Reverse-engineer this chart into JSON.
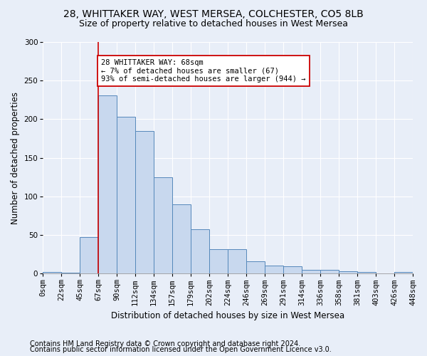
{
  "title1": "28, WHITTAKER WAY, WEST MERSEA, COLCHESTER, CO5 8LB",
  "title2": "Size of property relative to detached houses in West Mersea",
  "xlabel": "Distribution of detached houses by size in West Mersea",
  "ylabel": "Number of detached properties",
  "tick_labels": [
    "0sqm",
    "22sqm",
    "45sqm",
    "67sqm",
    "90sqm",
    "112sqm",
    "134sqm",
    "157sqm",
    "179sqm",
    "202sqm",
    "224sqm",
    "246sqm",
    "269sqm",
    "291sqm",
    "314sqm",
    "336sqm",
    "358sqm",
    "381sqm",
    "403sqm",
    "426sqm",
    "448sqm"
  ],
  "bar_heights": [
    2,
    1,
    47,
    231,
    203,
    185,
    125,
    90,
    57,
    32,
    32,
    16,
    10,
    9,
    5,
    5,
    3,
    2,
    0,
    2
  ],
  "bar_color": "#c8d8ee",
  "bar_edge_color": "#5588bb",
  "vline_color": "#cc0000",
  "vline_bin": 3,
  "annotation_text": "28 WHITTAKER WAY: 68sqm\n← 7% of detached houses are smaller (67)\n93% of semi-detached houses are larger (944) →",
  "annotation_box_color": "#cc0000",
  "annotation_box_fill": "#ffffff",
  "ylim": [
    0,
    300
  ],
  "yticks": [
    0,
    50,
    100,
    150,
    200,
    250,
    300
  ],
  "footer1": "Contains HM Land Registry data © Crown copyright and database right 2024.",
  "footer2": "Contains public sector information licensed under the Open Government Licence v3.0.",
  "bg_color": "#e8eef8",
  "plot_bg_color": "#e8eef8",
  "title1_fontsize": 10,
  "title2_fontsize": 9,
  "axis_label_fontsize": 8.5,
  "tick_fontsize": 7.5,
  "annotation_fontsize": 7.5,
  "footer_fontsize": 7
}
